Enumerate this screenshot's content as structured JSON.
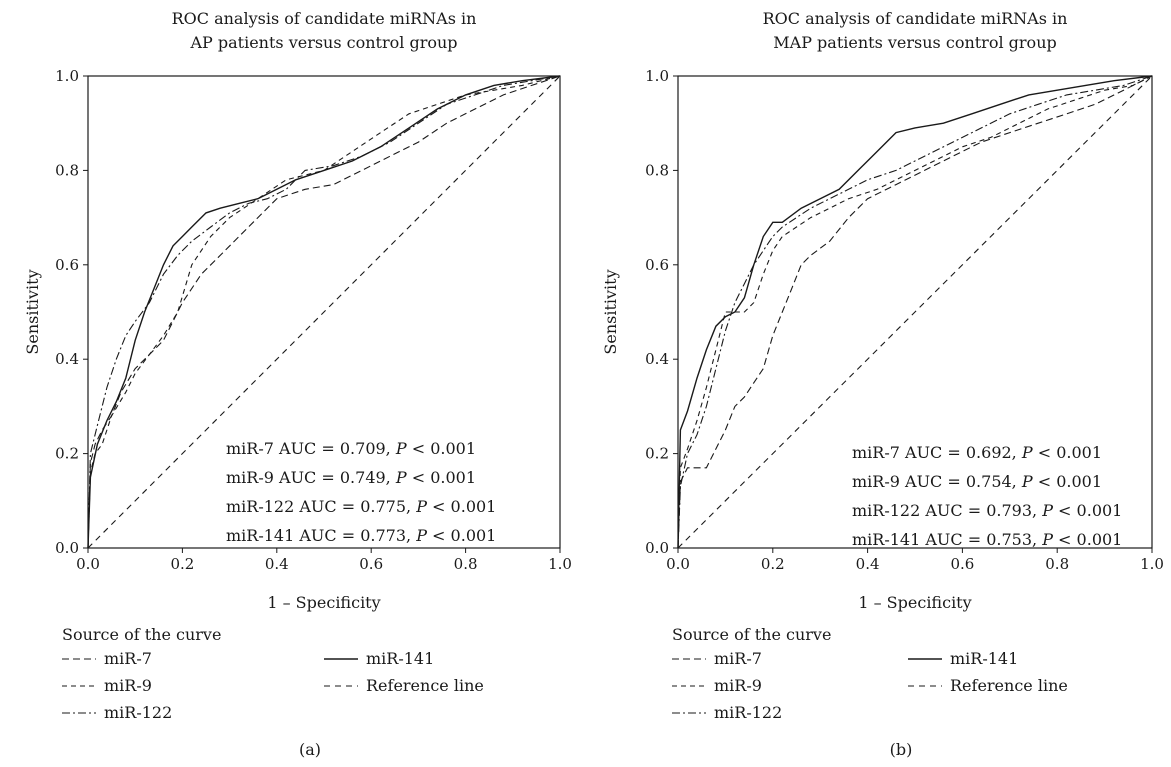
{
  "chart_data": [
    {
      "panel": "(a)",
      "type": "line",
      "title_line1": "ROC analysis of candidate miRNAs in",
      "title_line2": "AP patients versus control group",
      "xlabel": "1 – Specificity",
      "ylabel": "Sensitivity",
      "xlim": [
        0,
        1
      ],
      "ylim": [
        0,
        1
      ],
      "xticks": [
        "0.0",
        "0.2",
        "0.4",
        "0.6",
        "0.8",
        "1.0"
      ],
      "yticks": [
        "0.0",
        "0.2",
        "0.4",
        "0.6",
        "0.8",
        "1.0"
      ],
      "grid": false,
      "legend_title": "Source of the curve",
      "legend_position": "below",
      "annotations": [
        {
          "prefix": "miR-7 AUC = 0.709, ",
          "p": "P",
          "suffix": " < 0.001"
        },
        {
          "prefix": "miR-9 AUC = 0.749, ",
          "p": "P",
          "suffix": " < 0.001"
        },
        {
          "prefix": "miR-122 AUC = 0.775, ",
          "p": "P",
          "suffix": " < 0.001"
        },
        {
          "prefix": "miR-141 AUC = 0.773, ",
          "p": "P",
          "suffix": " < 0.001"
        }
      ],
      "series": [
        {
          "name": "miR-7",
          "dash": "dash-long",
          "x": [
            0,
            0.005,
            0.015,
            0.03,
            0.05,
            0.07,
            0.1,
            0.13,
            0.16,
            0.2,
            0.24,
            0.28,
            0.32,
            0.36,
            0.4,
            0.46,
            0.52,
            0.58,
            0.64,
            0.7,
            0.76,
            0.82,
            0.88,
            0.94,
            1
          ],
          "y": [
            0,
            0.18,
            0.22,
            0.25,
            0.28,
            0.33,
            0.38,
            0.41,
            0.44,
            0.52,
            0.58,
            0.62,
            0.66,
            0.7,
            0.74,
            0.76,
            0.77,
            0.8,
            0.83,
            0.86,
            0.9,
            0.93,
            0.96,
            0.98,
            1
          ]
        },
        {
          "name": "miR-9",
          "dash": "dash-short",
          "x": [
            0,
            0.005,
            0.015,
            0.03,
            0.05,
            0.08,
            0.1,
            0.13,
            0.16,
            0.19,
            0.22,
            0.26,
            0.3,
            0.36,
            0.42,
            0.5,
            0.56,
            0.62,
            0.68,
            0.74,
            0.8,
            0.86,
            0.92,
            1
          ],
          "y": [
            0,
            0.16,
            0.2,
            0.22,
            0.28,
            0.33,
            0.37,
            0.41,
            0.45,
            0.5,
            0.6,
            0.66,
            0.7,
            0.74,
            0.78,
            0.8,
            0.84,
            0.88,
            0.92,
            0.94,
            0.96,
            0.97,
            0.98,
            1
          ]
        },
        {
          "name": "miR-122",
          "dash": "dash-dot",
          "x": [
            0,
            0.005,
            0.02,
            0.04,
            0.06,
            0.08,
            0.1,
            0.13,
            0.16,
            0.19,
            0.22,
            0.26,
            0.3,
            0.34,
            0.38,
            0.42,
            0.46,
            0.52,
            0.58,
            0.64,
            0.7,
            0.76,
            0.82,
            0.88,
            0.94,
            1
          ],
          "y": [
            0,
            0.2,
            0.26,
            0.34,
            0.4,
            0.45,
            0.48,
            0.52,
            0.58,
            0.62,
            0.65,
            0.68,
            0.71,
            0.73,
            0.74,
            0.76,
            0.8,
            0.81,
            0.83,
            0.86,
            0.9,
            0.94,
            0.96,
            0.98,
            0.99,
            1
          ]
        },
        {
          "name": "miR-141",
          "dash": "solid",
          "x": [
            0,
            0.005,
            0.02,
            0.04,
            0.06,
            0.08,
            0.1,
            0.12,
            0.14,
            0.16,
            0.18,
            0.2,
            0.22,
            0.25,
            0.28,
            0.32,
            0.36,
            0.4,
            0.44,
            0.5,
            0.56,
            0.62,
            0.68,
            0.74,
            0.8,
            0.86,
            0.92,
            1
          ],
          "y": [
            0,
            0.15,
            0.22,
            0.27,
            0.31,
            0.36,
            0.44,
            0.5,
            0.55,
            0.6,
            0.64,
            0.66,
            0.68,
            0.71,
            0.72,
            0.73,
            0.74,
            0.76,
            0.78,
            0.8,
            0.82,
            0.85,
            0.89,
            0.93,
            0.96,
            0.98,
            0.99,
            1
          ]
        },
        {
          "name": "Reference line",
          "dash": "dash-ref",
          "x": [
            0,
            1
          ],
          "y": [
            0,
            1
          ]
        }
      ]
    },
    {
      "panel": "(b)",
      "type": "line",
      "title_line1": "ROC analysis of candidate miRNAs in",
      "title_line2": "MAP patients versus control group",
      "xlabel": "1 – Specificity",
      "ylabel": "Sensitivity",
      "xlim": [
        0,
        1
      ],
      "ylim": [
        0,
        1
      ],
      "xticks": [
        "0.0",
        "0.2",
        "0.4",
        "0.6",
        "0.8",
        "1.0"
      ],
      "yticks": [
        "0.0",
        "0.2",
        "0.4",
        "0.6",
        "0.8",
        "1.0"
      ],
      "grid": false,
      "legend_title": "Source of the curve",
      "legend_position": "below",
      "annotations": [
        {
          "prefix": "miR-7 AUC = 0.692, ",
          "p": "P",
          "suffix": " < 0.001"
        },
        {
          "prefix": "miR-9 AUC = 0.754, ",
          "p": "P",
          "suffix": " < 0.001"
        },
        {
          "prefix": "miR-122 AUC = 0.793, ",
          "p": "P",
          "suffix": " < 0.001"
        },
        {
          "prefix": "miR-141 AUC = 0.753, ",
          "p": "P",
          "suffix": " < 0.001"
        }
      ],
      "series": [
        {
          "name": "miR-7",
          "dash": "dash-long",
          "x": [
            0,
            0.005,
            0.02,
            0.04,
            0.06,
            0.08,
            0.1,
            0.12,
            0.14,
            0.16,
            0.18,
            0.2,
            0.22,
            0.24,
            0.26,
            0.28,
            0.32,
            0.36,
            0.4,
            0.46,
            0.52,
            0.58,
            0.64,
            0.7,
            0.76,
            0.82,
            0.88,
            0.94,
            1
          ],
          "y": [
            0,
            0.14,
            0.17,
            0.17,
            0.17,
            0.21,
            0.25,
            0.3,
            0.32,
            0.35,
            0.38,
            0.45,
            0.5,
            0.55,
            0.6,
            0.62,
            0.65,
            0.7,
            0.74,
            0.77,
            0.8,
            0.83,
            0.86,
            0.88,
            0.9,
            0.92,
            0.94,
            0.97,
            1
          ]
        },
        {
          "name": "miR-9",
          "dash": "dash-short",
          "x": [
            0,
            0.005,
            0.02,
            0.04,
            0.06,
            0.08,
            0.1,
            0.12,
            0.14,
            0.16,
            0.18,
            0.2,
            0.22,
            0.25,
            0.28,
            0.32,
            0.36,
            0.42,
            0.48,
            0.54,
            0.6,
            0.66,
            0.72,
            0.78,
            0.84,
            0.9,
            0.96,
            1
          ],
          "y": [
            0,
            0.17,
            0.21,
            0.27,
            0.34,
            0.42,
            0.5,
            0.5,
            0.5,
            0.52,
            0.58,
            0.63,
            0.66,
            0.68,
            0.7,
            0.72,
            0.74,
            0.76,
            0.79,
            0.82,
            0.85,
            0.87,
            0.9,
            0.93,
            0.95,
            0.97,
            0.98,
            1
          ]
        },
        {
          "name": "miR-122",
          "dash": "dash-dot",
          "x": [
            0,
            0.005,
            0.02,
            0.04,
            0.06,
            0.08,
            0.1,
            0.12,
            0.14,
            0.16,
            0.18,
            0.2,
            0.22,
            0.25,
            0.28,
            0.32,
            0.36,
            0.4,
            0.46,
            0.52,
            0.58,
            0.64,
            0.7,
            0.76,
            0.82,
            0.88,
            0.94,
            1
          ],
          "y": [
            0,
            0.13,
            0.2,
            0.24,
            0.3,
            0.38,
            0.46,
            0.52,
            0.56,
            0.6,
            0.63,
            0.66,
            0.68,
            0.7,
            0.72,
            0.74,
            0.76,
            0.78,
            0.8,
            0.83,
            0.86,
            0.89,
            0.92,
            0.94,
            0.96,
            0.97,
            0.98,
            1
          ]
        },
        {
          "name": "miR-141",
          "dash": "solid",
          "x": [
            0,
            0.005,
            0.02,
            0.04,
            0.06,
            0.08,
            0.1,
            0.12,
            0.14,
            0.16,
            0.18,
            0.2,
            0.22,
            0.26,
            0.3,
            0.34,
            0.38,
            0.42,
            0.46,
            0.5,
            0.56,
            0.62,
            0.68,
            0.74,
            0.8,
            0.86,
            0.92,
            1
          ],
          "y": [
            0,
            0.25,
            0.29,
            0.36,
            0.42,
            0.47,
            0.49,
            0.5,
            0.53,
            0.6,
            0.66,
            0.69,
            0.69,
            0.72,
            0.74,
            0.76,
            0.8,
            0.84,
            0.88,
            0.89,
            0.9,
            0.92,
            0.94,
            0.96,
            0.97,
            0.98,
            0.99,
            1
          ]
        },
        {
          "name": "Reference line",
          "dash": "dash-ref",
          "x": [
            0,
            1
          ],
          "y": [
            0,
            1
          ]
        }
      ]
    }
  ]
}
